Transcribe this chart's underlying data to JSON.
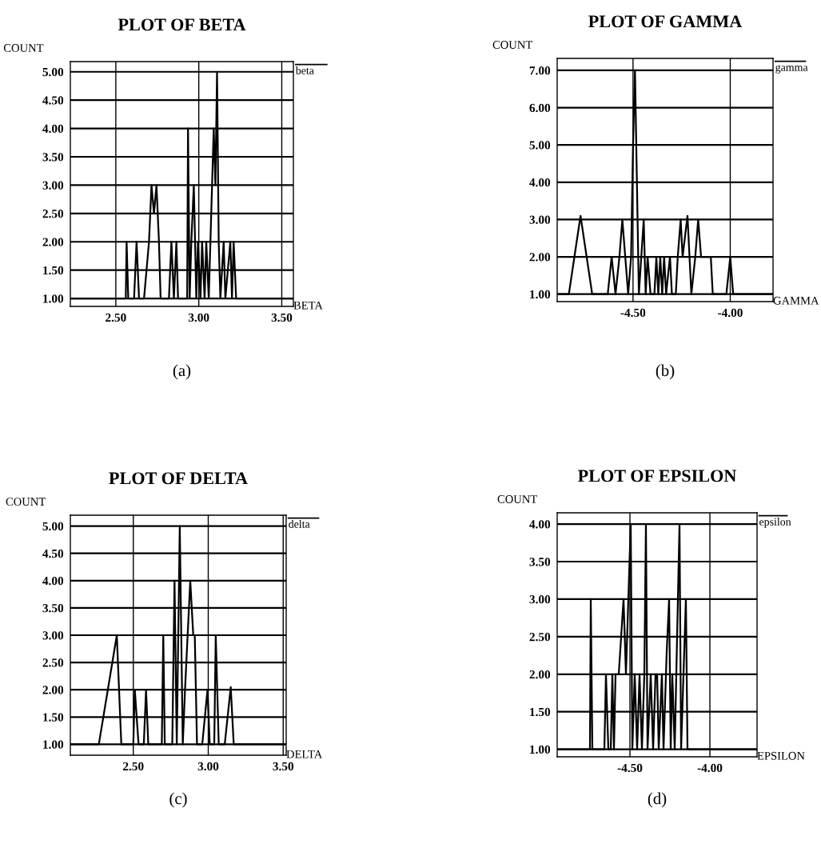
{
  "chart_data": [
    {
      "type": "line",
      "title": "PLOT OF BETA",
      "xlabel": "BETA",
      "ylabel": "COUNT",
      "annotations": [
        "(a)"
      ],
      "grid": true,
      "legend": "top right",
      "xlim": [
        2.226,
        3.57
      ],
      "ylim": [
        0.86,
        5.18
      ],
      "xticks": [
        {
          "value": 2.5,
          "label": "2.50"
        },
        {
          "value": 3.0,
          "label": "3.00"
        },
        {
          "value": 3.5,
          "label": "3.50"
        }
      ],
      "yticks": [
        {
          "value": 1,
          "label": "1.00"
        },
        {
          "value": 1.5,
          "label": "1.50"
        },
        {
          "value": 2,
          "label": "2.00"
        },
        {
          "value": 2.5,
          "label": "2.50"
        },
        {
          "value": 3,
          "label": "3.00"
        },
        {
          "value": 3.5,
          "label": "3.50"
        },
        {
          "value": 4,
          "label": "4.00"
        },
        {
          "value": 4.5,
          "label": "4.50"
        },
        {
          "value": 5,
          "label": "5.00"
        }
      ],
      "series": [
        {
          "name": "beta",
          "color": "#000000",
          "x": [
            2.226,
            2.56,
            2.565,
            2.575,
            2.61,
            2.625,
            2.64,
            2.67,
            2.7,
            2.715,
            2.73,
            2.745,
            2.76,
            2.77,
            2.82,
            2.835,
            2.85,
            2.865,
            2.875,
            2.93,
            2.935,
            2.945,
            2.955,
            2.97,
            2.985,
            2.995,
            3.01,
            3.02,
            3.035,
            3.045,
            3.06,
            3.07,
            3.08,
            3.09,
            3.1,
            3.11,
            3.12,
            3.13,
            3.15,
            3.16,
            3.19,
            3.2,
            3.21,
            3.225,
            3.57
          ],
          "values": [
            1,
            1,
            2,
            1,
            1,
            2,
            1,
            1,
            2,
            3,
            2.5,
            3,
            2,
            1,
            1,
            2,
            1,
            2,
            1,
            1,
            4,
            1,
            2,
            3,
            1,
            2,
            1,
            2,
            1,
            2,
            1,
            2,
            3,
            4,
            3,
            5,
            2,
            1,
            2,
            1,
            2,
            1,
            2,
            1,
            1
          ]
        }
      ]
    },
    {
      "type": "line",
      "title": "PLOT OF GAMMA",
      "xlabel": "GAMMA",
      "ylabel": "COUNT",
      "annotations": [
        "(b)"
      ],
      "grid": true,
      "legend": "top right",
      "xlim": [
        -4.89,
        -3.78
      ],
      "ylim": [
        0.8,
        7.32
      ],
      "xticks": [
        {
          "value": -4.5,
          "label": "-4.50"
        },
        {
          "value": -4.0,
          "label": "-4.00"
        }
      ],
      "yticks": [
        {
          "value": 1,
          "label": "1.00"
        },
        {
          "value": 2,
          "label": "2.00"
        },
        {
          "value": 3,
          "label": "3.00"
        },
        {
          "value": 4,
          "label": "4.00"
        },
        {
          "value": 5,
          "label": "5.00"
        },
        {
          "value": 6,
          "label": "6.00"
        },
        {
          "value": 7,
          "label": "7.00"
        }
      ],
      "series": [
        {
          "name": "gamma",
          "color": "#000000",
          "x": [
            -4.89,
            -4.83,
            -4.77,
            -4.71,
            -4.63,
            -4.61,
            -4.59,
            -4.57,
            -4.555,
            -4.54,
            -4.525,
            -4.51,
            -4.5,
            -4.49,
            -4.48,
            -4.47,
            -4.445,
            -4.435,
            -4.425,
            -4.41,
            -4.39,
            -4.38,
            -4.37,
            -4.36,
            -4.35,
            -4.34,
            -4.33,
            -4.31,
            -4.3,
            -4.28,
            -4.27,
            -4.255,
            -4.245,
            -4.22,
            -4.2,
            -4.18,
            -4.165,
            -4.15,
            -4.1,
            -4.09,
            -4.02,
            -4.0,
            -3.985,
            -3.78
          ],
          "values": [
            1,
            1,
            3.1,
            1,
            1,
            2,
            1,
            2,
            3,
            2,
            1,
            2,
            5,
            7,
            4,
            1,
            3,
            1,
            2,
            1,
            1,
            2,
            1,
            2,
            1,
            2,
            1,
            2,
            1,
            1,
            2,
            3,
            2,
            3.1,
            1,
            2,
            3,
            2,
            2,
            1,
            1,
            2,
            1,
            1
          ]
        }
      ]
    },
    {
      "type": "line",
      "title": "PLOT OF DELTA",
      "xlabel": "DELTA",
      "ylabel": "COUNT",
      "annotations": [
        "(c)"
      ],
      "grid": true,
      "legend": "top right",
      "xlim": [
        2.08,
        3.52
      ],
      "ylim": [
        0.8,
        5.2
      ],
      "xticks": [
        {
          "value": 2.5,
          "label": "2.50"
        },
        {
          "value": 3.0,
          "label": "3.00"
        },
        {
          "value": 3.5,
          "label": "3.50"
        }
      ],
      "yticks": [
        {
          "value": 1,
          "label": "1.00"
        },
        {
          "value": 1.5,
          "label": "1.50"
        },
        {
          "value": 2,
          "label": "2.00"
        },
        {
          "value": 2.5,
          "label": "2.50"
        },
        {
          "value": 3,
          "label": "3.00"
        },
        {
          "value": 3.5,
          "label": "3.50"
        },
        {
          "value": 4,
          "label": "4.00"
        },
        {
          "value": 4.5,
          "label": "4.50"
        },
        {
          "value": 5,
          "label": "5.00"
        }
      ],
      "series": [
        {
          "name": "delta",
          "color": "#000000",
          "x": [
            2.08,
            2.27,
            2.39,
            2.42,
            2.5,
            2.51,
            2.535,
            2.57,
            2.585,
            2.6,
            2.69,
            2.7,
            2.71,
            2.76,
            2.775,
            2.79,
            2.81,
            2.83,
            2.845,
            2.88,
            2.9,
            2.91,
            2.925,
            2.96,
            2.995,
            3.01,
            3.04,
            3.05,
            3.07,
            3.11,
            3.15,
            3.17,
            3.52
          ],
          "values": [
            1,
            1,
            3,
            1,
            1,
            2,
            1,
            1,
            2,
            1,
            1,
            3,
            1,
            1,
            4,
            1,
            5,
            1,
            2,
            4,
            3,
            3,
            1,
            1,
            2,
            1,
            1,
            3,
            1,
            1,
            2.05,
            1,
            1
          ]
        }
      ]
    },
    {
      "type": "line",
      "title": "PLOT OF EPSILON",
      "xlabel": "EPSILON",
      "ylabel": "COUNT",
      "annotations": [
        "(d)"
      ],
      "grid": true,
      "legend": "top right",
      "xlim": [
        -4.955,
        -3.705
      ],
      "ylim": [
        0.9,
        4.15
      ],
      "xticks": [
        {
          "value": -4.5,
          "label": "-4.50"
        },
        {
          "value": -4.0,
          "label": "-4.00"
        }
      ],
      "yticks": [
        {
          "value": 1,
          "label": "1.00"
        },
        {
          "value": 1.5,
          "label": "1.50"
        },
        {
          "value": 2,
          "label": "2.00"
        },
        {
          "value": 2.5,
          "label": "2.50"
        },
        {
          "value": 3,
          "label": "3.00"
        },
        {
          "value": 3.5,
          "label": "3.50"
        },
        {
          "value": 4,
          "label": "4.00"
        }
      ],
      "series": [
        {
          "name": "epsilon",
          "color": "#000000",
          "x": [
            -4.955,
            -4.75,
            -4.745,
            -4.735,
            -4.66,
            -4.65,
            -4.635,
            -4.62,
            -4.61,
            -4.6,
            -4.59,
            -4.57,
            -4.54,
            -4.525,
            -4.51,
            -4.495,
            -4.485,
            -4.47,
            -4.455,
            -4.44,
            -4.425,
            -4.41,
            -4.4,
            -4.39,
            -4.37,
            -4.355,
            -4.34,
            -4.33,
            -4.32,
            -4.3,
            -4.29,
            -4.27,
            -4.255,
            -4.245,
            -4.235,
            -4.22,
            -4.21,
            -4.19,
            -4.18,
            -4.165,
            -4.15,
            -4.14,
            -3.705
          ],
          "values": [
            1,
            1,
            3,
            1,
            1,
            2,
            1,
            1,
            2,
            1,
            2,
            2,
            3,
            2,
            3,
            4,
            1,
            2,
            1,
            2,
            1,
            2,
            4,
            1,
            2,
            1,
            2,
            2,
            1,
            2,
            1,
            2.3,
            3,
            1,
            2,
            1,
            2,
            4,
            1,
            2,
            3,
            1,
            1
          ]
        }
      ]
    }
  ]
}
